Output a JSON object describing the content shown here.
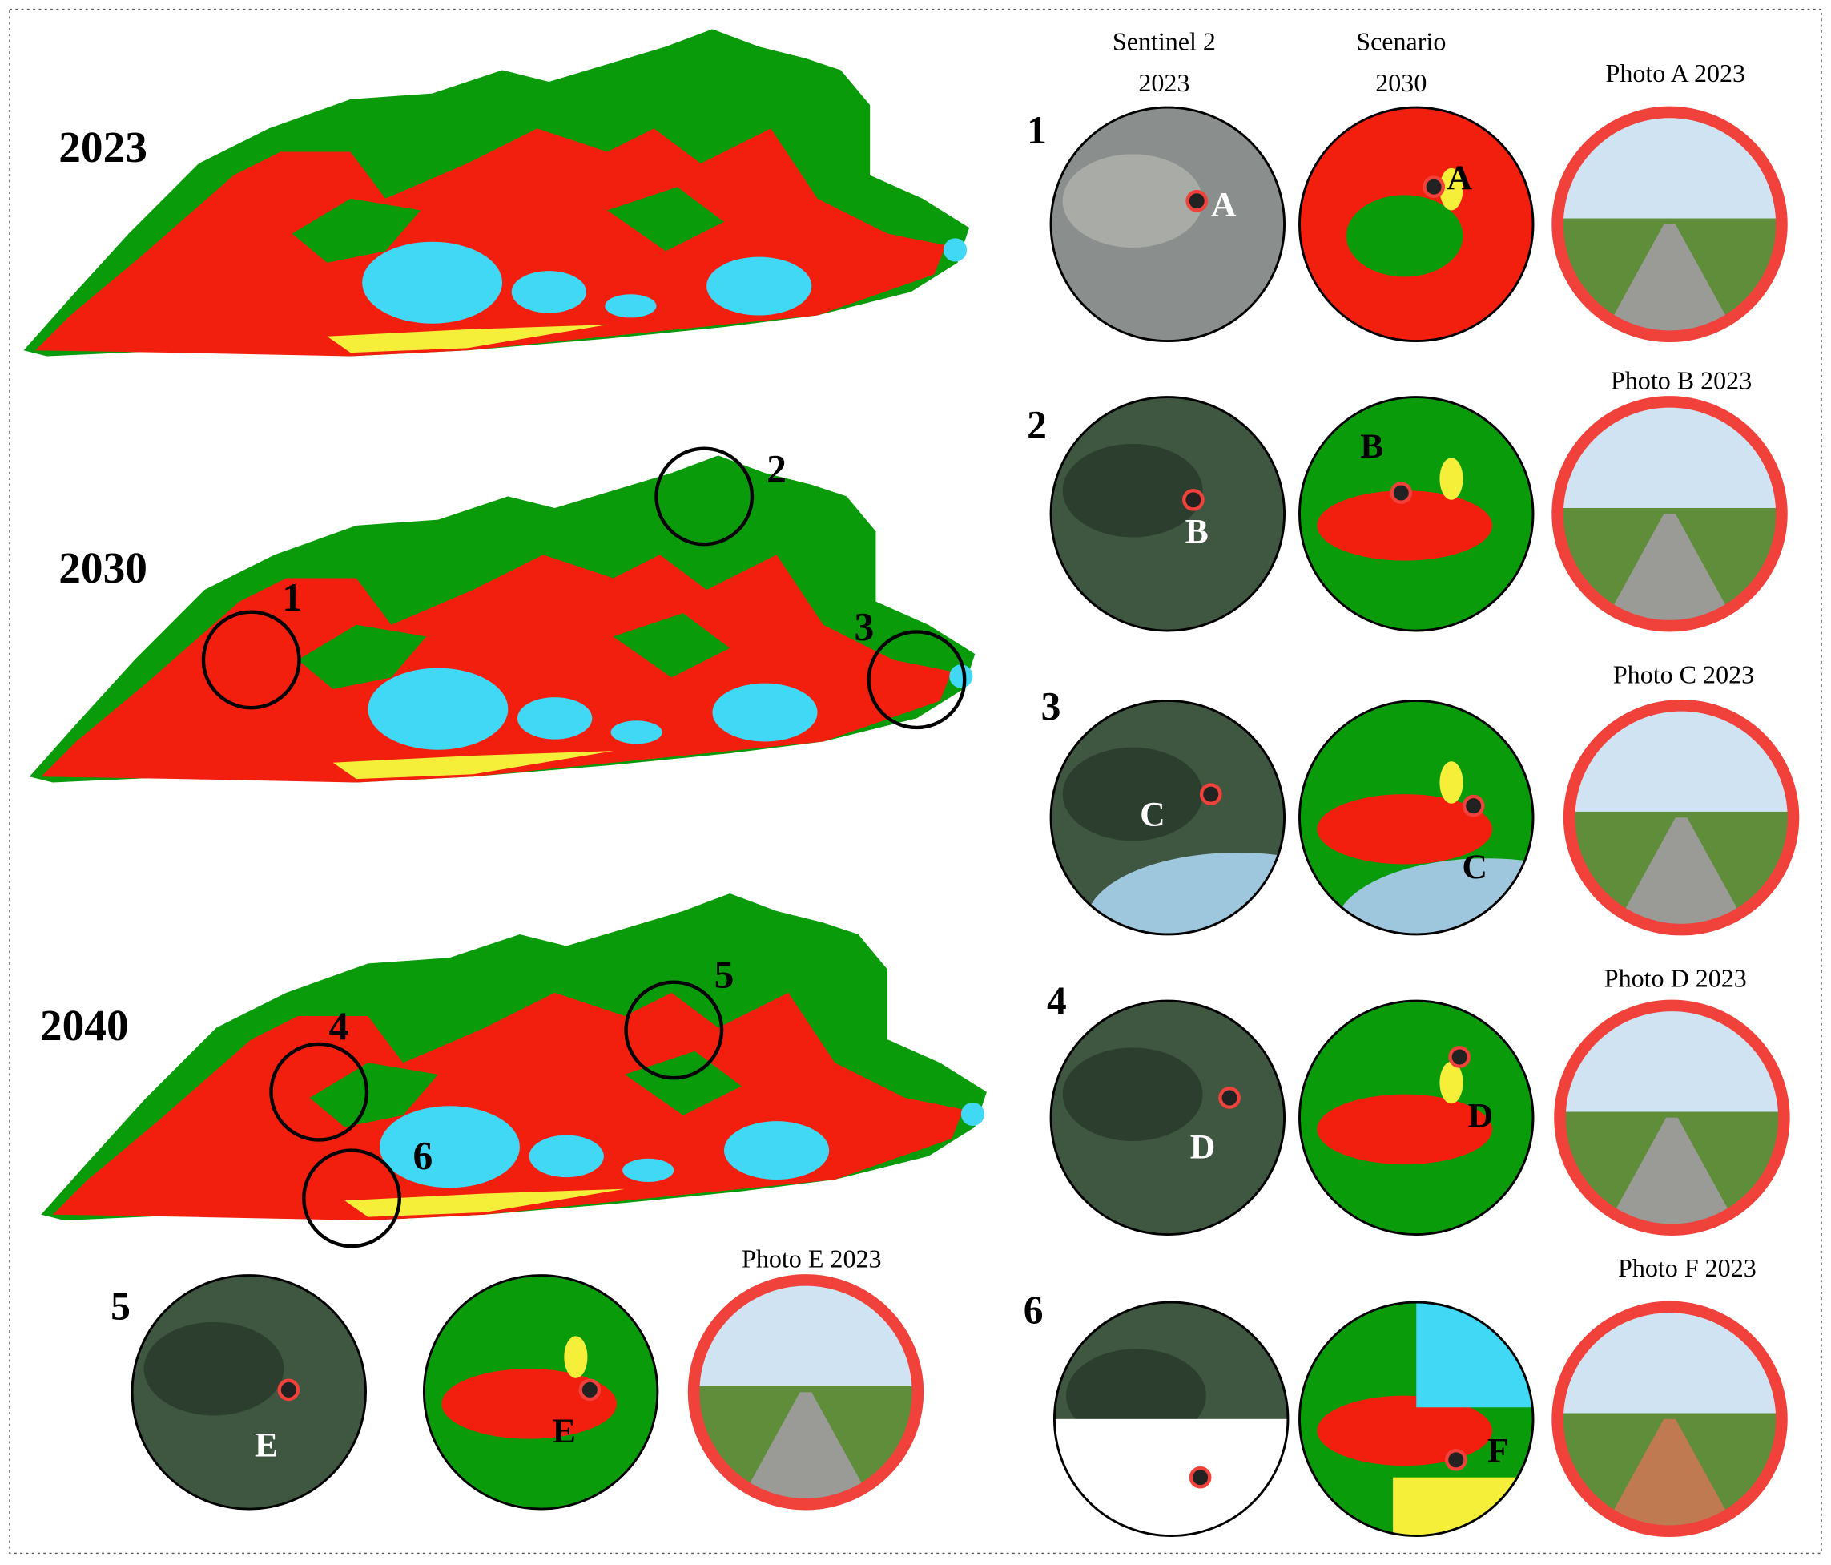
{
  "maps": [
    {
      "year": "2023"
    },
    {
      "year": "2030",
      "sites": [
        "1",
        "2",
        "3"
      ]
    },
    {
      "year": "2040",
      "sites": [
        "4",
        "5",
        "6"
      ]
    }
  ],
  "columns": {
    "sentinel": "Sentinel 2",
    "sentinel_year": "2023",
    "scenario": "Scenario",
    "scenario_year": "2030"
  },
  "rows": [
    {
      "number": "1",
      "point": "A",
      "photo": "Photo A 2023"
    },
    {
      "number": "2",
      "point": "B",
      "photo": "Photo B 2023"
    },
    {
      "number": "3",
      "point": "C",
      "photo": "Photo C 2023"
    },
    {
      "number": "4",
      "point": "D",
      "photo": "Photo D 2023"
    },
    {
      "number": "5",
      "point": "E",
      "photo": "Photo E 2023"
    },
    {
      "number": "6",
      "point": "F",
      "photo": "Photo F 2023"
    }
  ]
}
